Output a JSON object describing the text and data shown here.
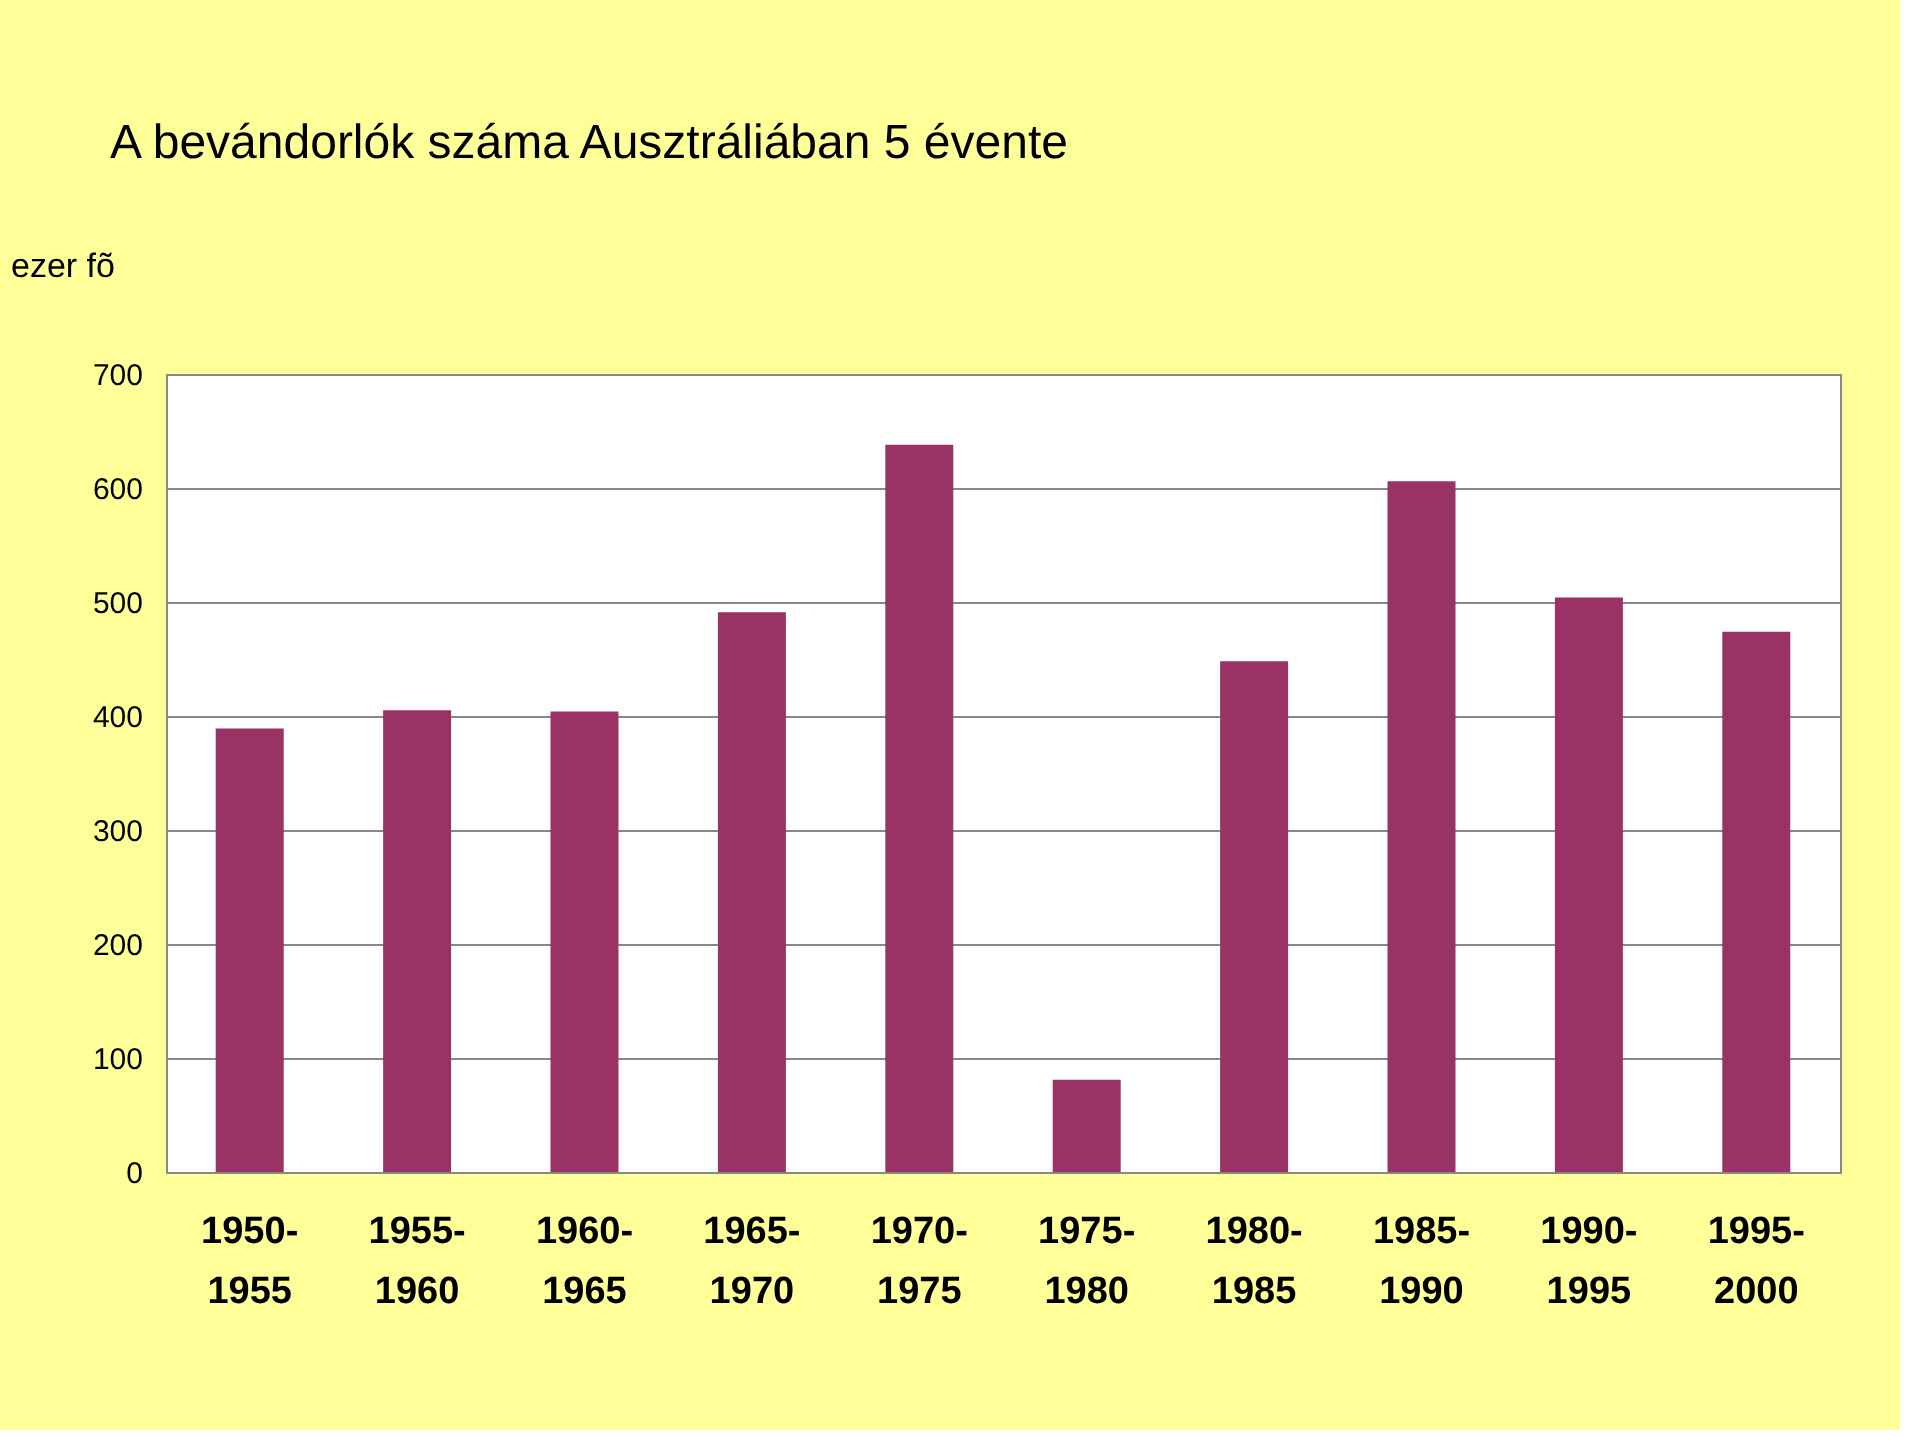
{
  "chart_data": {
    "type": "bar",
    "title": "A bevándorlók száma Ausztráliában 5 évente",
    "ylabel": "ezer fõ",
    "categories": [
      "1950-1955",
      "1955-1960",
      "1960-1965",
      "1965-1970",
      "1970-1975",
      "1975-1980",
      "1980-1985",
      "1985-1990",
      "1990-1995",
      "1995-2000"
    ],
    "values": [
      389,
      405,
      404,
      491,
      638,
      81,
      448,
      606,
      504,
      474
    ],
    "color": "#993366",
    "ylim": [
      0,
      700
    ],
    "yticks": [
      0,
      100,
      200,
      300,
      400,
      500,
      600,
      700
    ],
    "grid": "y"
  }
}
